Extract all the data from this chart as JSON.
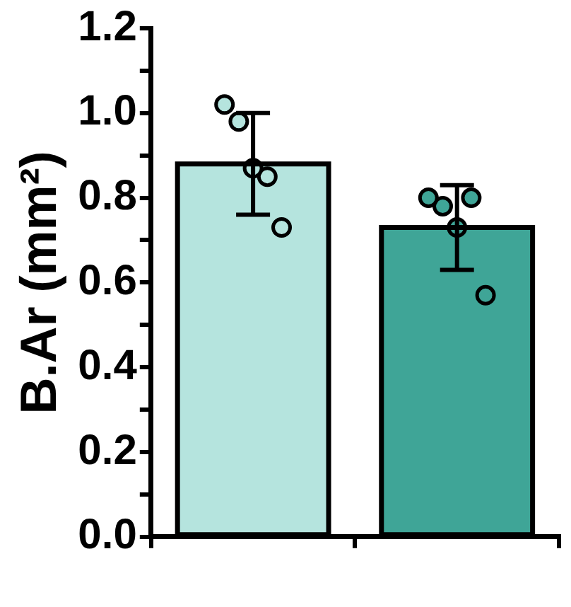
{
  "chart_data": {
    "type": "bar",
    "ylabel": "B.Ar (mm²)",
    "categories": [
      null,
      null
    ],
    "series": [
      {
        "colors": [
          "#b5e4de",
          "#3fa597"
        ],
        "values": [
          0.88,
          0.73
        ],
        "errors": [
          0.12,
          0.1
        ]
      },
      {
        "type": "scatter",
        "colors": [
          "#b5e4de",
          "#3fa597"
        ],
        "values": [
          1.02,
          0.8
        ]
      },
      {
        "type": "scatter",
        "colors": [
          "#b5e4de",
          "#3fa597"
        ],
        "values": [
          0.98,
          0.78
        ]
      },
      {
        "type": "scatter",
        "colors": [
          "#b5e4de",
          "#3fa597"
        ],
        "values": [
          0.87,
          0.73
        ]
      },
      {
        "type": "scatter",
        "colors": [
          "#b5e4de",
          "#3fa597"
        ],
        "values": [
          0.85,
          0.8
        ]
      },
      {
        "type": "scatter",
        "colors": [
          "#b5e4de",
          "#3fa597"
        ],
        "values": [
          0.73,
          0.57
        ]
      }
    ],
    "ylim": [
      0,
      1.2
    ],
    "yticks": [
      {
        "value": 0,
        "label": "0.0"
      },
      {
        "value": 0.1,
        "label": null
      },
      0.2,
      {
        "value": 0.3,
        "label": null
      },
      0.4,
      {
        "value": 0.5,
        "label": null
      },
      0.6,
      {
        "value": 0.7,
        "label": null
      },
      0.8,
      {
        "value": 0.9,
        "label": null
      },
      {
        "value": 1,
        "label": "1.0"
      },
      {
        "value": 1.1,
        "label": null
      },
      1.2
    ],
    "grid": false,
    "legend": false,
    "marker": "circle"
  }
}
